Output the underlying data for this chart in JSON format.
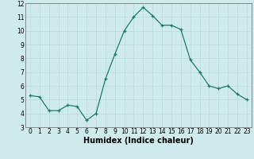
{
  "x": [
    0,
    1,
    2,
    3,
    4,
    5,
    6,
    7,
    8,
    9,
    10,
    11,
    12,
    13,
    14,
    15,
    16,
    17,
    18,
    19,
    20,
    21,
    22,
    23
  ],
  "y": [
    5.3,
    5.2,
    4.2,
    4.2,
    4.6,
    4.5,
    3.5,
    4.0,
    6.5,
    8.3,
    10.0,
    11.0,
    11.7,
    11.1,
    10.4,
    10.4,
    10.1,
    7.9,
    7.0,
    6.0,
    5.8,
    6.0,
    5.4,
    5.0
  ],
  "xlabel": "Humidex (Indice chaleur)",
  "ylim": [
    3,
    12
  ],
  "xlim_min": -0.5,
  "xlim_max": 23.5,
  "yticks": [
    3,
    4,
    5,
    6,
    7,
    8,
    9,
    10,
    11,
    12
  ],
  "xticks": [
    0,
    1,
    2,
    3,
    4,
    5,
    6,
    7,
    8,
    9,
    10,
    11,
    12,
    13,
    14,
    15,
    16,
    17,
    18,
    19,
    20,
    21,
    22,
    23
  ],
  "line_color": "#1a7a6e",
  "marker_color": "#1a7a6e",
  "bg_color": "#ceeaea",
  "grid_color": "#b8d8d8",
  "tick_fontsize": 5.5,
  "xlabel_fontsize": 7
}
